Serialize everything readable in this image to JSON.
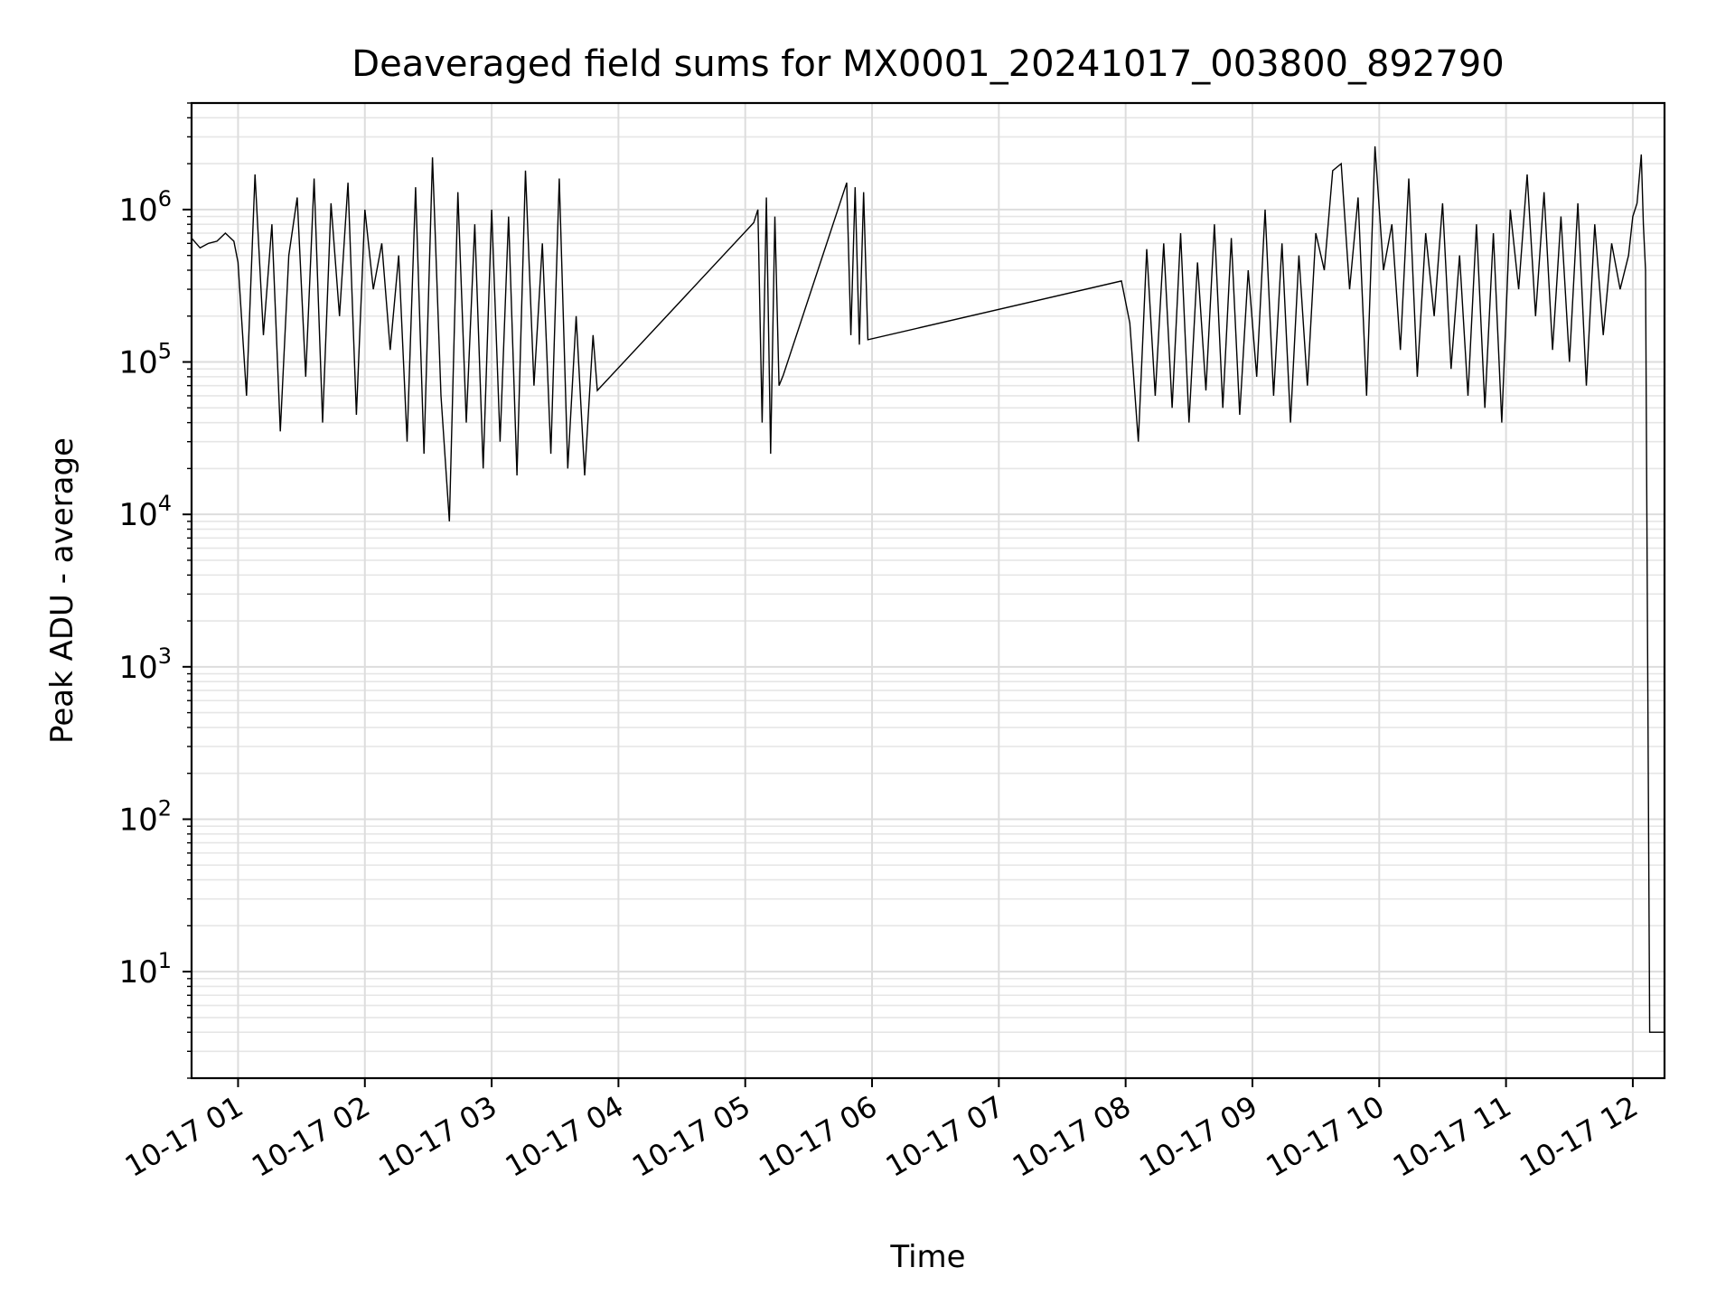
{
  "chart_data": {
    "type": "line",
    "title": "Deaveraged field sums for MX0001_20241017_003800_892790",
    "xlabel": "Time",
    "ylabel": "Peak ADU - average",
    "yscale": "log",
    "ylim": [
      2,
      5000000
    ],
    "xlim": [
      "2024-10-17 00:38",
      "2024-10-17 12:15"
    ],
    "grid": true,
    "grid_minor": true,
    "line_color": "#000000",
    "x_tick_labels": [
      "10-17 01",
      "10-17 02",
      "10-17 03",
      "10-17 04",
      "10-17 05",
      "10-17 06",
      "10-17 07",
      "10-17 08",
      "10-17 09",
      "10-17 10",
      "10-17 11",
      "10-17 12"
    ],
    "y_tick_labels": [
      {
        "base": "10",
        "exp": "1",
        "value": 10
      },
      {
        "base": "10",
        "exp": "2",
        "value": 100
      },
      {
        "base": "10",
        "exp": "3",
        "value": 1000
      },
      {
        "base": "10",
        "exp": "4",
        "value": 10000
      },
      {
        "base": "10",
        "exp": "5",
        "value": 100000
      },
      {
        "base": "10",
        "exp": "6",
        "value": 1000000
      }
    ],
    "series": [
      {
        "x": [
          "2024-10-17 00:38",
          "2024-10-17 00:42",
          "2024-10-17 00:46",
          "2024-10-17 00:50",
          "2024-10-17 00:54",
          "2024-10-17 00:58",
          "2024-10-17 01:00",
          "2024-10-17 01:04",
          "2024-10-17 01:08",
          "2024-10-17 01:12",
          "2024-10-17 01:16",
          "2024-10-17 01:20",
          "2024-10-17 01:24",
          "2024-10-17 01:28",
          "2024-10-17 01:32",
          "2024-10-17 01:36",
          "2024-10-17 01:40",
          "2024-10-17 01:44",
          "2024-10-17 01:48",
          "2024-10-17 01:52",
          "2024-10-17 01:56",
          "2024-10-17 02:00",
          "2024-10-17 02:04",
          "2024-10-17 02:08",
          "2024-10-17 02:12",
          "2024-10-17 02:16",
          "2024-10-17 02:20",
          "2024-10-17 02:24",
          "2024-10-17 02:28",
          "2024-10-17 02:32",
          "2024-10-17 02:36",
          "2024-10-17 02:40",
          "2024-10-17 02:44",
          "2024-10-17 02:48",
          "2024-10-17 02:52",
          "2024-10-17 02:56",
          "2024-10-17 03:00",
          "2024-10-17 03:04",
          "2024-10-17 03:08",
          "2024-10-17 03:12",
          "2024-10-17 03:16",
          "2024-10-17 03:20",
          "2024-10-17 03:24",
          "2024-10-17 03:28",
          "2024-10-17 03:32",
          "2024-10-17 03:36",
          "2024-10-17 03:40",
          "2024-10-17 03:44",
          "2024-10-17 03:48",
          "2024-10-17 03:50",
          "2024-10-17 05:04",
          "2024-10-17 05:06",
          "2024-10-17 05:08",
          "2024-10-17 05:10",
          "2024-10-17 05:12",
          "2024-10-17 05:14",
          "2024-10-17 05:16",
          "2024-10-17 05:18",
          "2024-10-17 05:48",
          "2024-10-17 05:50",
          "2024-10-17 05:52",
          "2024-10-17 05:54",
          "2024-10-17 05:56",
          "2024-10-17 05:58",
          "2024-10-17 07:58",
          "2024-10-17 08:02",
          "2024-10-17 08:06",
          "2024-10-17 08:10",
          "2024-10-17 08:14",
          "2024-10-17 08:18",
          "2024-10-17 08:22",
          "2024-10-17 08:26",
          "2024-10-17 08:30",
          "2024-10-17 08:34",
          "2024-10-17 08:38",
          "2024-10-17 08:42",
          "2024-10-17 08:46",
          "2024-10-17 08:50",
          "2024-10-17 08:54",
          "2024-10-17 08:58",
          "2024-10-17 09:02",
          "2024-10-17 09:06",
          "2024-10-17 09:10",
          "2024-10-17 09:14",
          "2024-10-17 09:18",
          "2024-10-17 09:22",
          "2024-10-17 09:26",
          "2024-10-17 09:30",
          "2024-10-17 09:34",
          "2024-10-17 09:38",
          "2024-10-17 09:42",
          "2024-10-17 09:46",
          "2024-10-17 09:50",
          "2024-10-17 09:54",
          "2024-10-17 09:58",
          "2024-10-17 10:02",
          "2024-10-17 10:06",
          "2024-10-17 10:10",
          "2024-10-17 10:14",
          "2024-10-17 10:18",
          "2024-10-17 10:22",
          "2024-10-17 10:26",
          "2024-10-17 10:30",
          "2024-10-17 10:34",
          "2024-10-17 10:38",
          "2024-10-17 10:42",
          "2024-10-17 10:46",
          "2024-10-17 10:50",
          "2024-10-17 10:54",
          "2024-10-17 10:58",
          "2024-10-17 11:02",
          "2024-10-17 11:06",
          "2024-10-17 11:10",
          "2024-10-17 11:14",
          "2024-10-17 11:18",
          "2024-10-17 11:22",
          "2024-10-17 11:26",
          "2024-10-17 11:30",
          "2024-10-17 11:34",
          "2024-10-17 11:38",
          "2024-10-17 11:42",
          "2024-10-17 11:46",
          "2024-10-17 11:50",
          "2024-10-17 11:54",
          "2024-10-17 11:58",
          "2024-10-17 12:00",
          "2024-10-17 12:02",
          "2024-10-17 12:04",
          "2024-10-17 12:05",
          "2024-10-17 12:06",
          "2024-10-17 12:08",
          "2024-10-17 12:10",
          "2024-10-17 12:12",
          "2024-10-17 12:15"
        ],
        "y": [
          650000,
          560000,
          600000,
          620000,
          700000,
          620000,
          450000,
          60000,
          1700000,
          150000,
          800000,
          35000,
          500000,
          1200000,
          80000,
          1600000,
          40000,
          1100000,
          200000,
          1500000,
          45000,
          1000000,
          300000,
          600000,
          120000,
          500000,
          30000,
          1400000,
          25000,
          2200000,
          60000,
          9000,
          1300000,
          40000,
          800000,
          20000,
          1000000,
          30000,
          900000,
          18000,
          1800000,
          70000,
          600000,
          25000,
          1600000,
          20000,
          200000,
          18000,
          150000,
          65000,
          820000,
          1000000,
          40000,
          1200000,
          25000,
          900000,
          70000,
          82000,
          1500000,
          150000,
          1400000,
          130000,
          1300000,
          140000,
          340000,
          180000,
          30000,
          550000,
          60000,
          600000,
          50000,
          700000,
          40000,
          450000,
          65000,
          800000,
          50000,
          650000,
          45000,
          400000,
          80000,
          1000000,
          60000,
          600000,
          40000,
          500000,
          70000,
          700000,
          400000,
          1800000,
          2000000,
          300000,
          1200000,
          60000,
          2600000,
          400000,
          800000,
          120000,
          1600000,
          80000,
          700000,
          200000,
          1100000,
          90000,
          500000,
          60000,
          800000,
          50000,
          700000,
          40000,
          1000000,
          300000,
          1700000,
          200000,
          1300000,
          120000,
          900000,
          100000,
          1100000,
          70000,
          800000,
          150000,
          600000,
          300000,
          500000,
          900000,
          1100000,
          2300000,
          800000,
          400000,
          4,
          4,
          4,
          4
        ]
      }
    ]
  }
}
